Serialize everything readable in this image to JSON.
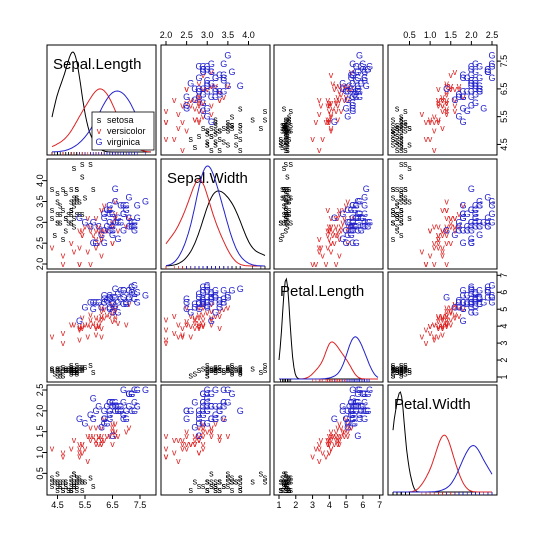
{
  "chart_data": {
    "type": "scatter-matrix",
    "variables": [
      "Sepal.Length",
      "Sepal.Width",
      "Petal.Length",
      "Petal.Width"
    ],
    "ranges": {
      "Sepal.Length": [
        4.3,
        7.9
      ],
      "Sepal.Width": [
        2.0,
        4.4
      ],
      "Petal.Length": [
        1.0,
        6.9
      ],
      "Petal.Width": [
        0.1,
        2.5
      ]
    },
    "ticks": {
      "Sepal.Length": [
        4.5,
        5.5,
        6.5,
        7.5
      ],
      "Sepal.Width": [
        2.0,
        2.5,
        3.0,
        3.5,
        4.0
      ],
      "Petal.Length": [
        1,
        2,
        3,
        4,
        5,
        6,
        7
      ],
      "Petal.Width": [
        0.5,
        1.0,
        1.5,
        2.0,
        2.5
      ]
    },
    "tick_labels": {
      "Sepal.Length": [
        "4.5",
        "5.5",
        "6.5",
        "7.5"
      ],
      "Sepal.Width": [
        "2.0",
        "2.5",
        "3.0",
        "3.5",
        "4.0"
      ],
      "Petal.Length": [
        "1",
        "2",
        "3",
        "4",
        "5",
        "6",
        "7"
      ],
      "Petal.Width": [
        "0.5",
        "1.0",
        "1.5",
        "2.0",
        "2.5"
      ]
    },
    "tick_placement": {
      "top": [
        "Sepal.Width",
        "Petal.Width"
      ],
      "bottom": [
        "Sepal.Length",
        "Petal.Length"
      ],
      "left": [
        "Sepal.Width",
        "Petal.Width"
      ],
      "right": [
        "Sepal.Length",
        "Petal.Length"
      ]
    },
    "legend": {
      "placement": "bottom-right of Sepal.Length panel",
      "entries": [
        {
          "symbol": "s",
          "label": "setosa",
          "color": "#000000"
        },
        {
          "symbol": "v",
          "label": "versicolor",
          "color": "#dd2222"
        },
        {
          "symbol": "G",
          "label": "virginica",
          "color": "#2222cc"
        }
      ]
    },
    "series": [
      {
        "name": "setosa",
        "symbol": "s",
        "color": "#000000",
        "mean": [
          5.01,
          3.43,
          1.46,
          0.25
        ],
        "sd": [
          0.35,
          0.38,
          0.17,
          0.11
        ]
      },
      {
        "name": "versicolor",
        "symbol": "v",
        "color": "#dd2222",
        "mean": [
          5.94,
          2.77,
          4.26,
          1.33
        ],
        "sd": [
          0.52,
          0.31,
          0.47,
          0.2
        ]
      },
      {
        "name": "virginica",
        "symbol": "G",
        "color": "#2222cc",
        "mean": [
          6.59,
          2.97,
          5.55,
          2.03
        ],
        "sd": [
          0.64,
          0.32,
          0.55,
          0.27
        ]
      }
    ],
    "points_per_species": 50,
    "diagonal": "density"
  }
}
